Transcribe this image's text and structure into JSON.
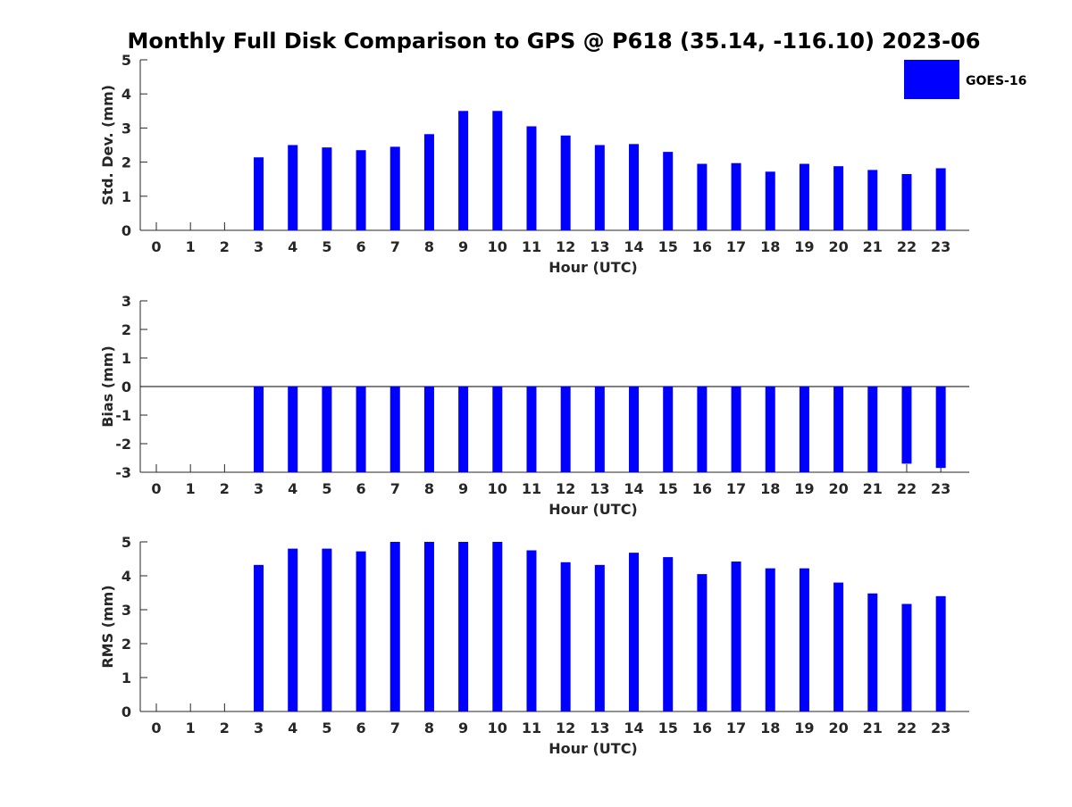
{
  "title": "Monthly Full Disk Comparison to GPS @ P618 (35.14, -116.10) 2023-06",
  "legend": {
    "label": "GOES-16",
    "color": "#0000ff",
    "placement": "top-right"
  },
  "chart_data": [
    {
      "type": "bar",
      "ylabel": "Std. Dev. (mm)",
      "xlabel": "Hour (UTC)",
      "ylim": [
        0,
        5
      ],
      "yticks": [
        0,
        1,
        2,
        3,
        4,
        5
      ],
      "categories": [
        "0",
        "1",
        "2",
        "3",
        "4",
        "5",
        "6",
        "7",
        "8",
        "9",
        "10",
        "11",
        "12",
        "13",
        "14",
        "15",
        "16",
        "17",
        "18",
        "19",
        "20",
        "21",
        "22",
        "23"
      ],
      "series": [
        {
          "name": "GOES-16",
          "color": "#0000ff",
          "values": [
            null,
            null,
            null,
            2.14,
            2.5,
            2.43,
            2.35,
            2.45,
            2.82,
            3.5,
            3.5,
            3.05,
            2.78,
            2.5,
            2.53,
            2.3,
            1.95,
            1.97,
            1.72,
            1.95,
            1.88,
            1.77,
            1.65,
            1.82
          ]
        }
      ]
    },
    {
      "type": "bar",
      "ylabel": "Bias (mm)",
      "xlabel": "Hour (UTC)",
      "ylim": [
        -3,
        3
      ],
      "yticks": [
        -3,
        -2,
        -1,
        0,
        1,
        2,
        3
      ],
      "categories": [
        "0",
        "1",
        "2",
        "3",
        "4",
        "5",
        "6",
        "7",
        "8",
        "9",
        "10",
        "11",
        "12",
        "13",
        "14",
        "15",
        "16",
        "17",
        "18",
        "19",
        "20",
        "21",
        "22",
        "23"
      ],
      "series": [
        {
          "name": "GOES-16",
          "color": "#0000ff",
          "values": [
            null,
            null,
            null,
            -3,
            -3,
            -3,
            -3,
            -3,
            -3,
            -3,
            -3,
            -3,
            -3,
            -3,
            -3,
            -3,
            -3,
            -3,
            -3,
            -3,
            -3,
            -3,
            -2.7,
            -2.85
          ]
        }
      ]
    },
    {
      "type": "bar",
      "ylabel": "RMS (mm)",
      "xlabel": "Hour (UTC)",
      "ylim": [
        0,
        5
      ],
      "yticks": [
        0,
        1,
        2,
        3,
        4,
        5
      ],
      "categories": [
        "0",
        "1",
        "2",
        "3",
        "4",
        "5",
        "6",
        "7",
        "8",
        "9",
        "10",
        "11",
        "12",
        "13",
        "14",
        "15",
        "16",
        "17",
        "18",
        "19",
        "20",
        "21",
        "22",
        "23"
      ],
      "series": [
        {
          "name": "GOES-16",
          "color": "#0000ff",
          "values": [
            null,
            null,
            null,
            4.32,
            4.8,
            4.8,
            4.72,
            5,
            5,
            5,
            5,
            4.75,
            4.4,
            4.32,
            4.68,
            4.55,
            4.05,
            4.42,
            4.22,
            4.22,
            3.8,
            3.48,
            3.17,
            3.4
          ]
        }
      ]
    }
  ]
}
